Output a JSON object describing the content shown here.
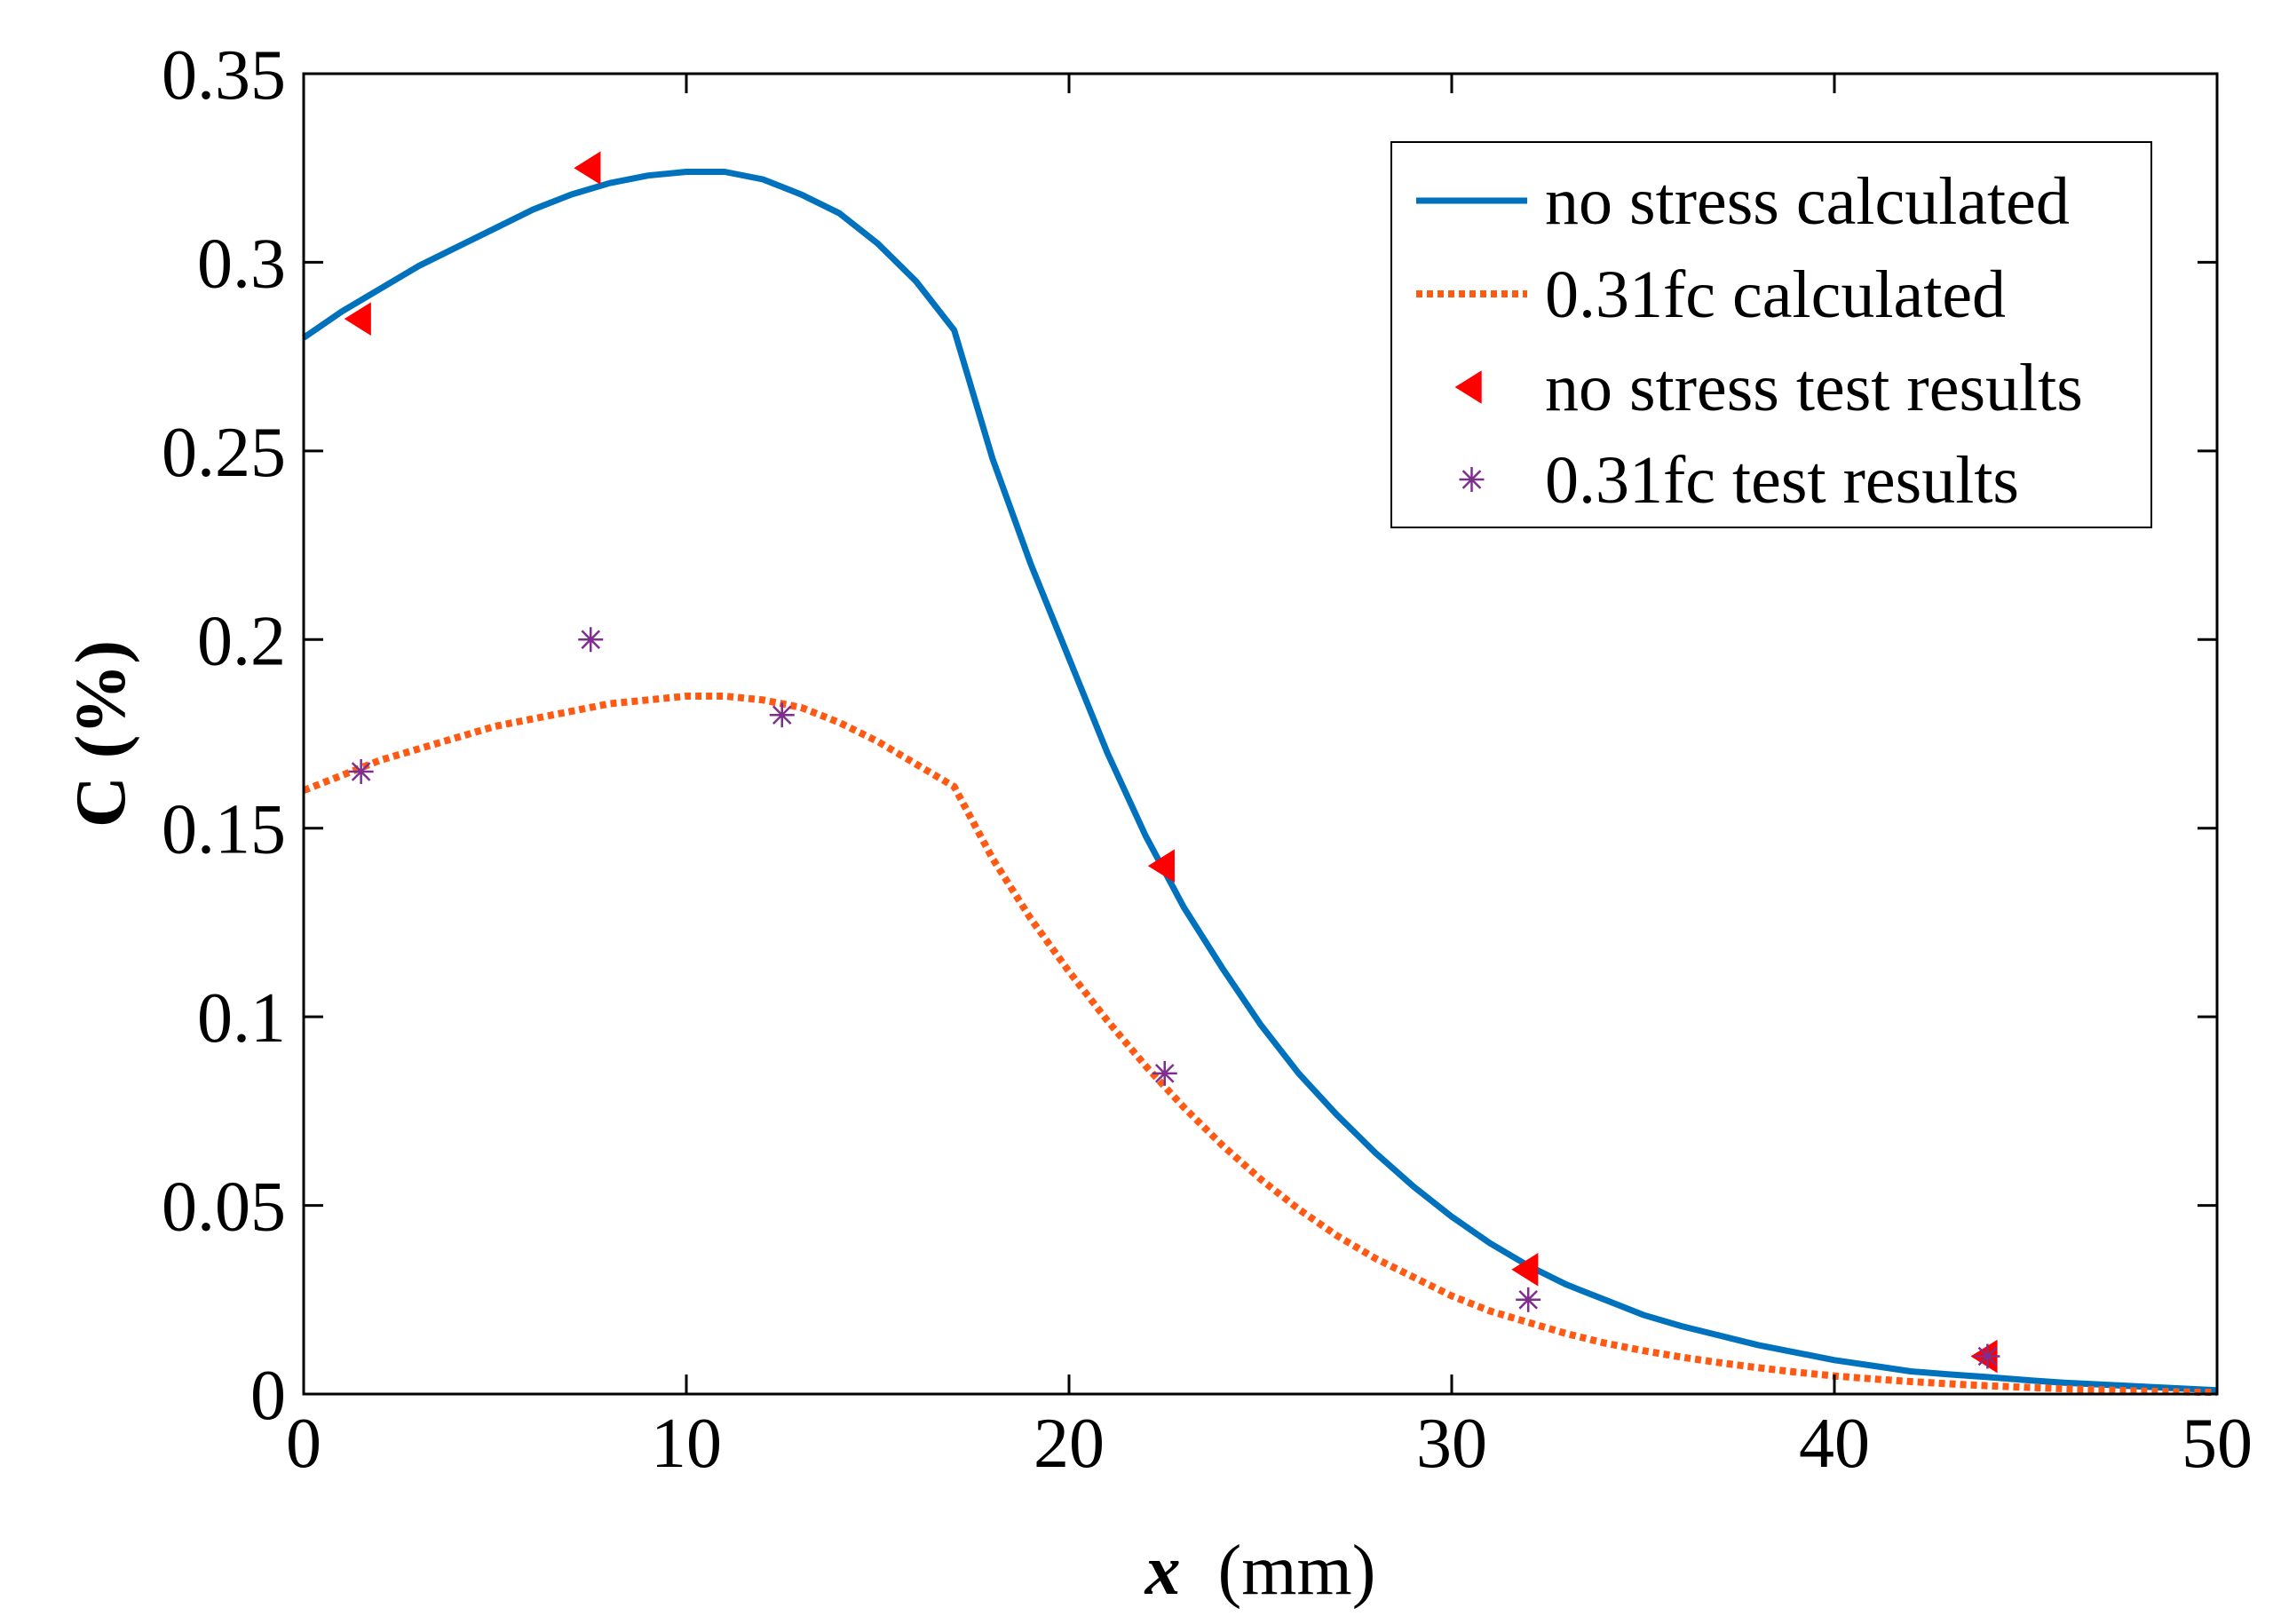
{
  "chart_data": {
    "type": "line",
    "xlabel_symbol": "x",
    "xlabel_unit": "(mm)",
    "ylabel": "C (%)",
    "xlim": [
      0,
      50
    ],
    "ylim": [
      0,
      0.35
    ],
    "xticks": [
      0,
      10,
      20,
      30,
      40,
      50
    ],
    "xtick_labels": [
      "0",
      "10",
      "20",
      "30",
      "40",
      "50"
    ],
    "yticks": [
      0,
      0.05,
      0.1,
      0.15,
      0.2,
      0.25,
      0.3,
      0.35
    ],
    "ytick_labels": [
      "0",
      "0.05",
      "0.1",
      "0.15",
      "0.2",
      "0.25",
      "0.3",
      "0.35"
    ],
    "grid": false,
    "legend_position": "top-right",
    "series": [
      {
        "name": "no stress calculated",
        "kind": "line",
        "style": "solid",
        "color": "#0072BD",
        "x": [
          0,
          1,
          2,
          3,
          4,
          5,
          6,
          7,
          8,
          9,
          10,
          11,
          12,
          13,
          14,
          15,
          16,
          17,
          18,
          19,
          20,
          21,
          22,
          23,
          24,
          25,
          26,
          27,
          28,
          29,
          30,
          31,
          32,
          33,
          34,
          35,
          36,
          37,
          38,
          39,
          40,
          41,
          42,
          43,
          44,
          45,
          46,
          47,
          48,
          49,
          50
        ],
        "y": [
          0.28,
          0.287,
          0.293,
          0.299,
          0.304,
          0.309,
          0.314,
          0.318,
          0.321,
          0.323,
          0.324,
          0.324,
          0.322,
          0.318,
          0.313,
          0.305,
          0.295,
          0.282,
          0.248,
          0.22,
          0.195,
          0.17,
          0.148,
          0.129,
          0.113,
          0.098,
          0.085,
          0.074,
          0.064,
          0.055,
          0.047,
          0.04,
          0.034,
          0.029,
          0.025,
          0.021,
          0.018,
          0.0155,
          0.013,
          0.011,
          0.009,
          0.0075,
          0.006,
          0.0052,
          0.0045,
          0.0037,
          0.003,
          0.0025,
          0.002,
          0.0015,
          0.001
        ]
      },
      {
        "name": "0.31fc calculated",
        "kind": "line",
        "style": "dotted",
        "color": "#FF5A14",
        "x": [
          0,
          1,
          2,
          3,
          4,
          5,
          6,
          7,
          8,
          9,
          10,
          11,
          12,
          13,
          14,
          15,
          16,
          17,
          18,
          19,
          20,
          21,
          22,
          23,
          24,
          25,
          26,
          27,
          28,
          29,
          30,
          31,
          32,
          33,
          34,
          35,
          36,
          37,
          38,
          39,
          40,
          41,
          42,
          43,
          44,
          45,
          46,
          47,
          48,
          49,
          50
        ],
        "y": [
          0.16,
          0.164,
          0.168,
          0.171,
          0.174,
          0.177,
          0.179,
          0.181,
          0.183,
          0.184,
          0.185,
          0.185,
          0.184,
          0.182,
          0.178,
          0.173,
          0.167,
          0.161,
          0.142,
          0.126,
          0.112,
          0.099,
          0.087,
          0.076,
          0.066,
          0.057,
          0.049,
          0.042,
          0.036,
          0.031,
          0.026,
          0.022,
          0.019,
          0.016,
          0.0135,
          0.0115,
          0.0098,
          0.0083,
          0.007,
          0.0058,
          0.0048,
          0.004,
          0.0033,
          0.0027,
          0.0022,
          0.0018,
          0.0014,
          0.0011,
          0.0008,
          0.0006,
          0.0004
        ]
      },
      {
        "name": "no stress test results",
        "kind": "marker",
        "marker": "triangle-left",
        "color": "#FF0000",
        "x": [
          1.5,
          7.5,
          22.5,
          32,
          44
        ],
        "y": [
          0.285,
          0.325,
          0.14,
          0.033,
          0.01
        ]
      },
      {
        "name": "0.31fc test results",
        "kind": "marker",
        "marker": "asterisk",
        "color": "#7E2F8E",
        "x": [
          1.5,
          7.5,
          12.5,
          22.5,
          32,
          44
        ],
        "y": [
          0.165,
          0.2,
          0.18,
          0.085,
          0.025,
          0.01
        ]
      }
    ]
  }
}
